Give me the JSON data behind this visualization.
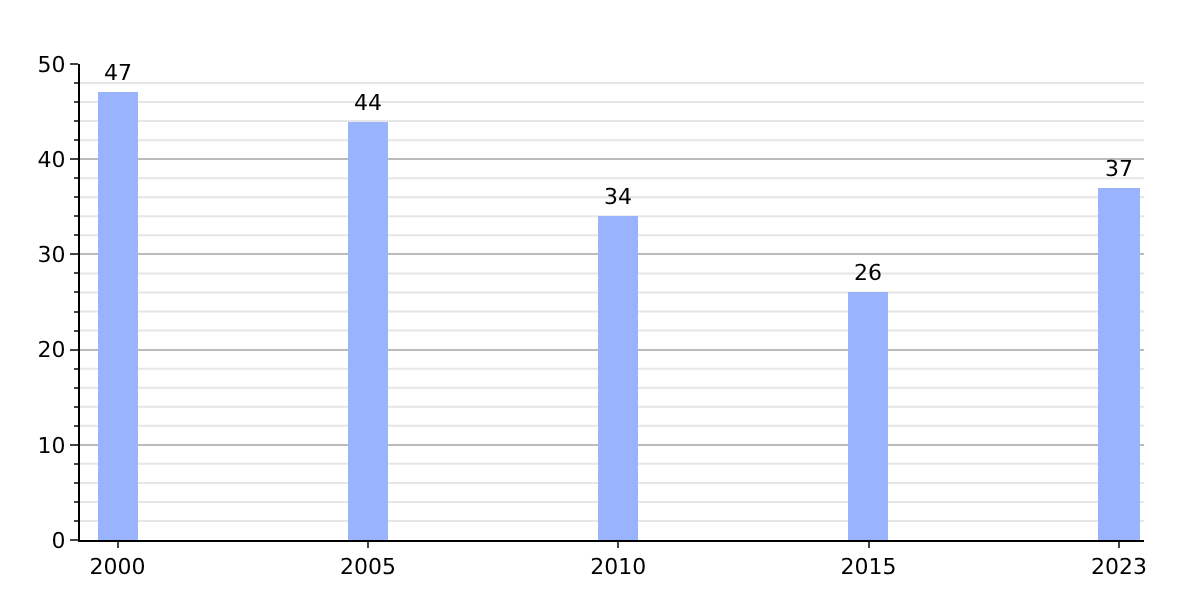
{
  "chart_data": {
    "type": "bar",
    "categories": [
      "2000",
      "2005",
      "2010",
      "2015",
      "2023"
    ],
    "values": [
      47,
      44,
      34,
      26,
      37
    ],
    "color": "#99b3ff",
    "data_labels": true,
    "ylim": [
      0,
      50
    ],
    "yticks": [
      0,
      {
        "value": 2,
        "label": null
      },
      {
        "value": 4,
        "label": null
      },
      {
        "value": 6,
        "label": null
      },
      {
        "value": 8,
        "label": null
      },
      10,
      {
        "value": 12,
        "label": null
      },
      {
        "value": 14,
        "label": null
      },
      {
        "value": 16,
        "label": null
      },
      {
        "value": 18,
        "label": null
      },
      20,
      {
        "value": 22,
        "label": null
      },
      {
        "value": 24,
        "label": null
      },
      {
        "value": 26,
        "label": null
      },
      {
        "value": 28,
        "label": null
      },
      30,
      {
        "value": 32,
        "label": null
      },
      {
        "value": 34,
        "label": null
      },
      {
        "value": 36,
        "label": null
      },
      {
        "value": 38,
        "label": null
      },
      40,
      {
        "value": 42,
        "label": null
      },
      {
        "value": 44,
        "label": null
      },
      {
        "value": 46,
        "label": null
      },
      {
        "value": 48,
        "label": null
      },
      50
    ],
    "grid": true
  }
}
